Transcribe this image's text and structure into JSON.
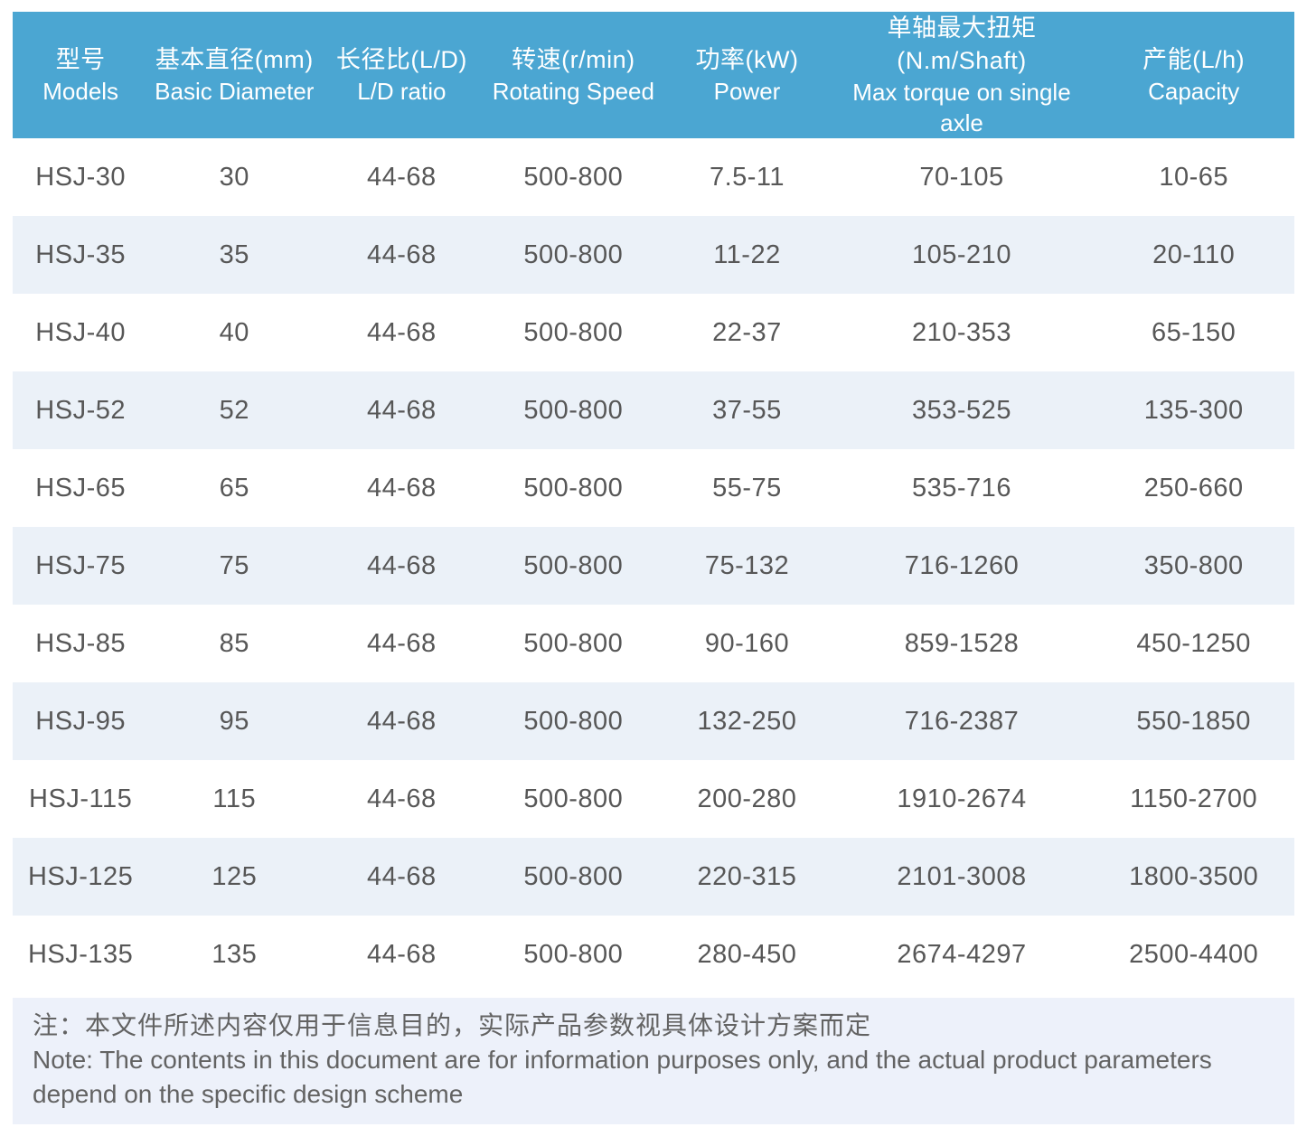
{
  "table": {
    "columns": [
      {
        "zh": "型号",
        "en": "Models"
      },
      {
        "zh": "基本直径(mm)",
        "en": "Basic Diameter"
      },
      {
        "zh": "长径比(L/D)",
        "en": "L/D ratio"
      },
      {
        "zh": "转速(r/min)",
        "en": "Rotating Speed"
      },
      {
        "zh": "功率(kW)",
        "en": "Power"
      },
      {
        "zh": "单轴最大扭矩(N.m/Shaft)",
        "en": "Max torque on single axle"
      },
      {
        "zh": "产能(L/h)",
        "en": "Capacity"
      }
    ],
    "rows": [
      [
        "HSJ-30",
        "30",
        "44-68",
        "500-800",
        "7.5-11",
        "70-105",
        "10-65"
      ],
      [
        "HSJ-35",
        "35",
        "44-68",
        "500-800",
        "11-22",
        "105-210",
        "20-110"
      ],
      [
        "HSJ-40",
        "40",
        "44-68",
        "500-800",
        "22-37",
        "210-353",
        "65-150"
      ],
      [
        "HSJ-52",
        "52",
        "44-68",
        "500-800",
        "37-55",
        "353-525",
        "135-300"
      ],
      [
        "HSJ-65",
        "65",
        "44-68",
        "500-800",
        "55-75",
        "535-716",
        "250-660"
      ],
      [
        "HSJ-75",
        "75",
        "44-68",
        "500-800",
        "75-132",
        "716-1260",
        "350-800"
      ],
      [
        "HSJ-85",
        "85",
        "44-68",
        "500-800",
        "90-160",
        "859-1528",
        "450-1250"
      ],
      [
        "HSJ-95",
        "95",
        "44-68",
        "500-800",
        "132-250",
        "716-2387",
        "550-1850"
      ],
      [
        "HSJ-115",
        "115",
        "44-68",
        "500-800",
        "200-280",
        "1910-2674",
        "1150-2700"
      ],
      [
        "HSJ-125",
        "125",
        "44-68",
        "500-800",
        "220-315",
        "2101-3008",
        "1800-3500"
      ],
      [
        "HSJ-135",
        "135",
        "44-68",
        "500-800",
        "280-450",
        "2674-4297",
        "2500-4400"
      ]
    ]
  },
  "note": {
    "zh": "注：本文件所述内容仅用于信息目的，实际产品参数视具体设计方案而定",
    "en": "Note: The contents in this document are for information purposes only, and the actual product parameters depend on the specific design scheme"
  },
  "colors": {
    "header_bg": "#4BA6D2",
    "row_alt_bg": "#EBF1F8",
    "note_bg": "#EDF1FA",
    "header_text": "#FFFFFF",
    "body_text": "#575757",
    "note_text": "#636363"
  }
}
